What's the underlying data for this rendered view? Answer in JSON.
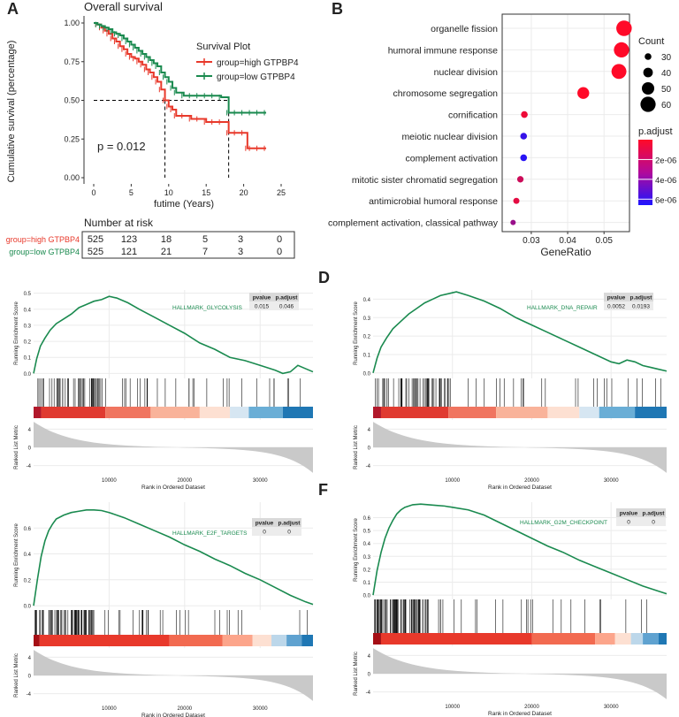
{
  "colors": {
    "high": "#e8392b",
    "low": "#1a8a4f",
    "gsea_line": "#1a8a4f",
    "grid": "#ebebeb",
    "panel_bg": "#ebebeb",
    "table_head": "#d9d9d9",
    "table_cell": "#ececec"
  },
  "chart_data": [
    {
      "panel": "A",
      "type": "line",
      "subtype": "kaplan-meier",
      "title": "Overall survival",
      "xlabel": "futime (Years)",
      "ylabel": "Cumulative survival (percentage)",
      "xlim": [
        0,
        25
      ],
      "ylim": [
        0,
        1
      ],
      "x_ticks": [
        "0",
        "5",
        "10",
        "15",
        "20",
        "25"
      ],
      "y_ticks": [
        "0.00",
        "0.25",
        "0.50",
        "0.75",
        "1.00"
      ],
      "legend_title": "Survival Plot",
      "pvalue_text": "p = 0.012",
      "median_survival": [
        9.5,
        18.0
      ],
      "series": [
        {
          "name": "group=high GTPBP4",
          "x": [
            0,
            0.5,
            1,
            1.5,
            2,
            2.5,
            3,
            3.5,
            4,
            4.5,
            5,
            5.5,
            6,
            6.5,
            7,
            7.5,
            8,
            8.5,
            9,
            9.5,
            10,
            10.5,
            11,
            12,
            13,
            14,
            15,
            16,
            17,
            18,
            19,
            20,
            20.5,
            21,
            22,
            23
          ],
          "y": [
            1.0,
            0.99,
            0.97,
            0.95,
            0.93,
            0.9,
            0.88,
            0.85,
            0.83,
            0.8,
            0.78,
            0.77,
            0.75,
            0.73,
            0.7,
            0.68,
            0.65,
            0.62,
            0.57,
            0.5,
            0.46,
            0.44,
            0.4,
            0.4,
            0.38,
            0.38,
            0.36,
            0.36,
            0.36,
            0.29,
            0.29,
            0.29,
            0.19,
            0.19,
            0.19,
            0.19
          ]
        },
        {
          "name": "group=low GTPBP4",
          "x": [
            0,
            0.5,
            1,
            1.5,
            2,
            2.5,
            3,
            3.5,
            4,
            4.5,
            5,
            5.5,
            6,
            6.5,
            7,
            7.5,
            8,
            8.5,
            9,
            9.5,
            10,
            10.5,
            11,
            12,
            13,
            14,
            15,
            16,
            17,
            18,
            19,
            20,
            21,
            22,
            23
          ],
          "y": [
            1.0,
            0.99,
            0.98,
            0.97,
            0.96,
            0.94,
            0.93,
            0.92,
            0.9,
            0.88,
            0.86,
            0.84,
            0.82,
            0.8,
            0.78,
            0.76,
            0.74,
            0.72,
            0.68,
            0.65,
            0.62,
            0.58,
            0.55,
            0.53,
            0.53,
            0.53,
            0.53,
            0.53,
            0.52,
            0.42,
            0.42,
            0.42,
            0.42,
            0.42,
            0.42
          ]
        }
      ],
      "risk_table": {
        "title": "Number at risk",
        "rows": [
          {
            "label": "group=high GTPBP4",
            "values": [
              "525",
              "123",
              "18",
              "5",
              "3",
              "0"
            ]
          },
          {
            "label": "group=low GTPBP4",
            "values": [
              "525",
              "121",
              "21",
              "7",
              "3",
              "0"
            ]
          }
        ]
      }
    },
    {
      "panel": "B",
      "type": "scatter",
      "subtype": "dotplot",
      "xlabel": "GeneRatio",
      "xlim": [
        0.022,
        0.057
      ],
      "x_ticks": [
        0.03,
        0.04,
        0.05
      ],
      "x_tick_labels": [
        "0.03",
        "0.04",
        "0.05"
      ],
      "categories": [
        "organelle fission",
        "humoral immune response",
        "nuclear division",
        "chromosome segregation",
        "cornification",
        "meiotic nuclear division",
        "complement activation",
        "mitotic sister chromatid segregation",
        "antimicrobial humoral response",
        "complement activation, classical pathway"
      ],
      "gene_ratio": [
        0.0555,
        0.0548,
        0.0541,
        0.0443,
        0.0281,
        0.0279,
        0.0279,
        0.027,
        0.0259,
        0.025
      ],
      "count": [
        61,
        60,
        59,
        48,
        30,
        30,
        30,
        29,
        28,
        25
      ],
      "p_adjust": [
        1e-10,
        1e-09,
        5e-09,
        1e-08,
        5e-07,
        5.9e-06,
        6.3e-06,
        1.5e-06,
        8e-07,
        3e-06
      ],
      "size_legend_title": "Count",
      "size_legend_values": [
        30,
        40,
        50,
        60
      ],
      "size_legend_labels": [
        "30",
        "40",
        "50",
        "60"
      ],
      "color_legend_title": "p.adjust",
      "color_legend_range": [
        0,
        6.6e-06
      ],
      "color_legend_ticks": [
        2e-06,
        4e-06,
        6e-06
      ],
      "color_legend_labels": [
        "2e-06",
        "4e-06",
        "6e-06"
      ]
    },
    {
      "panel": "C",
      "type": "line",
      "subtype": "gsea",
      "gene_set": "HALLMARK_GLYCOLYSIS",
      "table_headers": [
        "pvalue",
        "p.adjust"
      ],
      "table_values": [
        "0.015",
        "0.046"
      ],
      "ylabel_top": "Running Enrichment Score",
      "ylabel_bottom": "Ranked List Metric",
      "xlabel": "Rank in Ordered Dataset",
      "x_range": [
        0,
        37000
      ],
      "x_ticks": [
        10000,
        20000,
        30000
      ],
      "x_tick_labels": [
        "10000",
        "20000",
        "30000"
      ],
      "es_ylim": [
        -0.02,
        0.52
      ],
      "es_ticks": [
        0.0,
        0.1,
        0.2,
        0.3,
        0.4,
        0.5
      ],
      "es_tick_labels": [
        "0.0",
        "0.1",
        "0.2",
        "0.3",
        "0.4",
        "0.5"
      ],
      "metric_ticks": [
        4,
        0,
        -4
      ],
      "metric_tick_labels": [
        "4",
        "0",
        "-4"
      ],
      "es_x": [
        0,
        400,
        900,
        1500,
        2200,
        3000,
        4000,
        5000,
        6000,
        7000,
        8000,
        9000,
        10000,
        11000,
        12500,
        14000,
        16000,
        18000,
        20000,
        22000,
        24000,
        26000,
        28000,
        30000,
        32000,
        33000,
        34000,
        35000,
        36000,
        37000
      ],
      "es_y": [
        0.0,
        0.09,
        0.17,
        0.22,
        0.27,
        0.31,
        0.34,
        0.37,
        0.41,
        0.43,
        0.45,
        0.46,
        0.48,
        0.47,
        0.44,
        0.4,
        0.35,
        0.3,
        0.25,
        0.19,
        0.15,
        0.1,
        0.08,
        0.05,
        0.02,
        0.0,
        0.01,
        0.05,
        0.03,
        0.01
      ],
      "hits_text": "dense hits before rank 10000, sparser afterwards"
    },
    {
      "panel": "D",
      "type": "line",
      "subtype": "gsea",
      "gene_set": "HALLMARK_DNA_REPAIR",
      "table_headers": [
        "pvalue",
        "p.adjust"
      ],
      "table_values": [
        "0.0052",
        "0.0193"
      ],
      "ylabel_top": "Running Enrichment Score",
      "ylabel_bottom": "Ranked List Metric",
      "xlabel": "Rank in Ordered Dataset",
      "x_range": [
        0,
        37000
      ],
      "x_ticks": [
        10000,
        20000,
        30000
      ],
      "x_tick_labels": [
        "10000",
        "20000",
        "30000"
      ],
      "es_ylim": [
        -0.02,
        0.45
      ],
      "es_ticks": [
        0.0,
        0.1,
        0.2,
        0.3,
        0.4
      ],
      "es_tick_labels": [
        "0.0",
        "0.1",
        "0.2",
        "0.3",
        "0.4"
      ],
      "metric_ticks": [
        4,
        0,
        -4
      ],
      "metric_tick_labels": [
        "4",
        "0",
        "-4"
      ],
      "es_x": [
        0,
        500,
        1000,
        1700,
        2500,
        3500,
        4500,
        5500,
        6500,
        7500,
        8500,
        9500,
        10500,
        12000,
        14000,
        16000,
        18000,
        20000,
        22000,
        24000,
        26000,
        28000,
        30000,
        31000,
        32000,
        33000,
        34000,
        35000,
        36000,
        37000
      ],
      "es_y": [
        0.0,
        0.08,
        0.14,
        0.19,
        0.24,
        0.28,
        0.32,
        0.35,
        0.38,
        0.4,
        0.42,
        0.43,
        0.44,
        0.42,
        0.39,
        0.35,
        0.3,
        0.26,
        0.22,
        0.18,
        0.14,
        0.1,
        0.06,
        0.05,
        0.07,
        0.06,
        0.04,
        0.03,
        0.02,
        0.01
      ],
      "hits_text": "dense hits before rank 10000, sparser afterwards"
    },
    {
      "panel": "E",
      "type": "line",
      "subtype": "gsea",
      "gene_set": "HALLMARK_E2F_TARGETS",
      "table_headers": [
        "pvalue",
        "p.adjust"
      ],
      "table_values": [
        "0",
        "0"
      ],
      "ylabel_top": "Running Enrichment Score",
      "ylabel_bottom": "Ranked List Metric",
      "xlabel": "Rank in Ordered Dataset",
      "x_range": [
        0,
        37000
      ],
      "x_ticks": [
        10000,
        20000,
        30000
      ],
      "x_tick_labels": [
        "10000",
        "20000",
        "30000"
      ],
      "es_ylim": [
        -0.02,
        0.8
      ],
      "es_ticks": [
        0.0,
        0.2,
        0.4,
        0.6
      ],
      "es_tick_labels": [
        "0.0",
        "0.2",
        "0.4",
        "0.6"
      ],
      "metric_ticks": [
        4,
        0,
        -4
      ],
      "metric_tick_labels": [
        "4",
        "0",
        "-4"
      ],
      "es_x": [
        0,
        500,
        1000,
        1500,
        2000,
        2500,
        3000,
        4000,
        5000,
        6000,
        7000,
        8000,
        9000,
        10000,
        12000,
        14000,
        16000,
        18000,
        20000,
        22000,
        24000,
        26000,
        28000,
        30000,
        32000,
        34000,
        36000,
        37000
      ],
      "es_y": [
        0.0,
        0.2,
        0.38,
        0.5,
        0.58,
        0.63,
        0.67,
        0.7,
        0.72,
        0.73,
        0.74,
        0.74,
        0.735,
        0.72,
        0.68,
        0.63,
        0.58,
        0.53,
        0.47,
        0.42,
        0.36,
        0.31,
        0.25,
        0.2,
        0.14,
        0.08,
        0.03,
        0.01
      ],
      "hits_text": "dense hits before rank 8000"
    },
    {
      "panel": "F",
      "type": "line",
      "subtype": "gsea",
      "gene_set": "HALLMARK_G2M_CHECKPOINT",
      "table_headers": [
        "pvalue",
        "p.adjust"
      ],
      "table_values": [
        "0",
        "0"
      ],
      "ylabel_top": "Running Enrichment Score",
      "ylabel_bottom": "Ranked List Metric",
      "xlabel": "Rank in Ordered Dataset",
      "x_range": [
        0,
        37000
      ],
      "x_ticks": [
        10000,
        20000,
        30000
      ],
      "x_tick_labels": [
        "10000",
        "20000",
        "30000"
      ],
      "es_ylim": [
        -0.02,
        0.72
      ],
      "es_ticks": [
        0.0,
        0.1,
        0.2,
        0.3,
        0.4,
        0.5,
        0.6
      ],
      "es_tick_labels": [
        "0.0",
        "0.1",
        "0.2",
        "0.3",
        "0.4",
        "0.5",
        "0.6"
      ],
      "metric_ticks": [
        4,
        0,
        -4
      ],
      "metric_tick_labels": [
        "4",
        "0",
        "-4"
      ],
      "es_x": [
        0,
        500,
        1000,
        1500,
        2000,
        2500,
        3000,
        3500,
        4000,
        5000,
        6000,
        7000,
        8000,
        9000,
        10000,
        12000,
        14000,
        16000,
        18000,
        20000,
        22000,
        24000,
        26000,
        28000,
        30000,
        32000,
        34000,
        36000,
        37000
      ],
      "es_y": [
        0.0,
        0.19,
        0.33,
        0.44,
        0.52,
        0.58,
        0.63,
        0.66,
        0.68,
        0.7,
        0.705,
        0.7,
        0.695,
        0.69,
        0.68,
        0.66,
        0.62,
        0.56,
        0.5,
        0.44,
        0.38,
        0.33,
        0.27,
        0.22,
        0.17,
        0.12,
        0.07,
        0.03,
        0.01
      ],
      "hits_text": "dense hits before rank 7000"
    }
  ],
  "panel_labels": [
    "A",
    "B",
    "C",
    "D",
    "E",
    "F"
  ]
}
